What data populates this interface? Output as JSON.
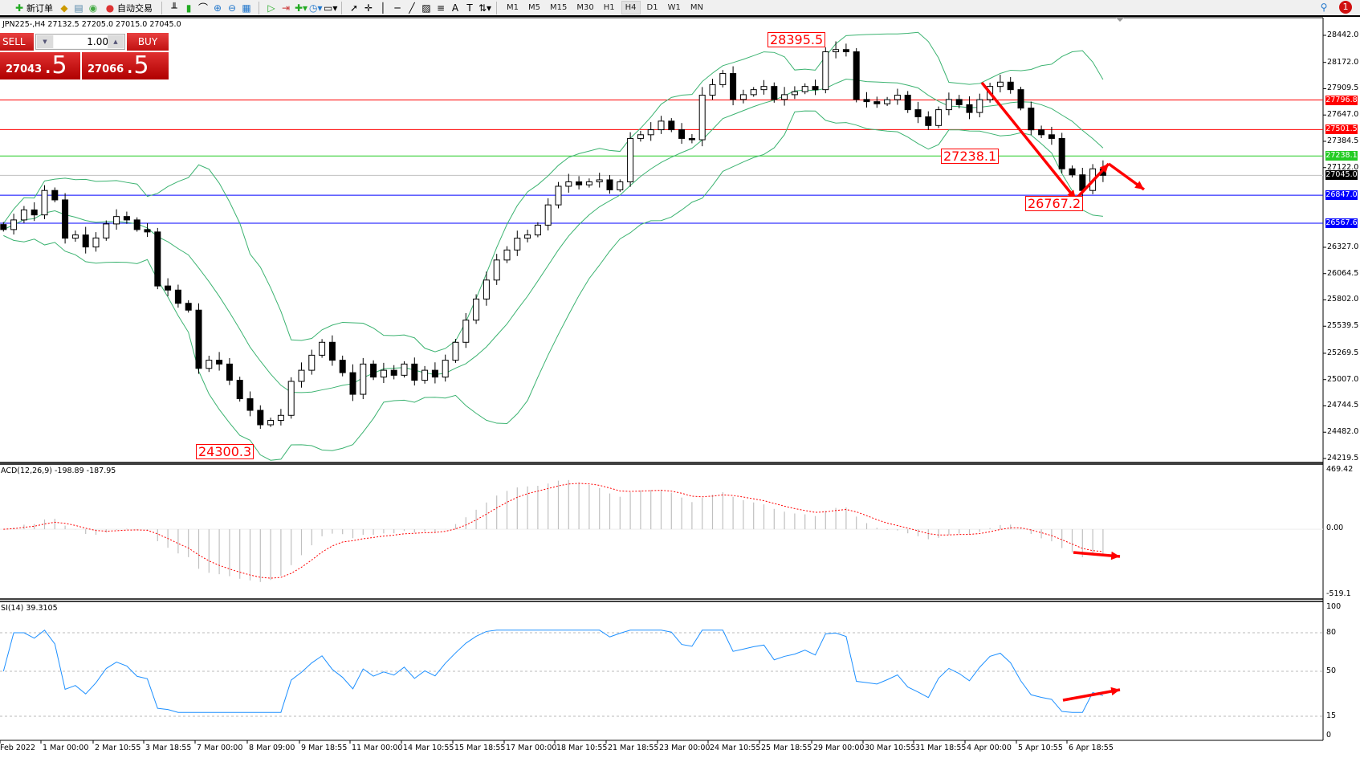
{
  "toolbar": {
    "new_order": "新订单",
    "auto_trading": "自动交易",
    "timeframes": [
      "M1",
      "M5",
      "M15",
      "M30",
      "H1",
      "H4",
      "D1",
      "W1",
      "MN"
    ],
    "active_timeframe": "H4",
    "notification_count": "1"
  },
  "chart": {
    "symbol_info": "JPN225-,H4  27132.5 27205.0 27015.0 27045.0"
  },
  "one_click": {
    "sell_label": "SELL",
    "buy_label": "BUY",
    "lot": "1.00",
    "sell_price_main": "27043",
    "sell_price_big": ".5",
    "buy_price_main": "27066",
    "buy_price_big": ".5"
  },
  "price_axis": {
    "ticks": [
      "28442.0",
      "28172.0",
      "27909.5",
      "27647.0",
      "27384.5",
      "27122.0",
      "26327.0",
      "26064.5",
      "25802.0",
      "25539.5",
      "25269.5",
      "25007.0",
      "24744.5",
      "24482.0",
      "24219.5"
    ]
  },
  "levels": [
    {
      "label": "27796.8",
      "value": 27796.8,
      "color": "#ff0000"
    },
    {
      "label": "27501.5",
      "value": 27501.5,
      "color": "#ff0000"
    },
    {
      "label": "27238.1",
      "value": 27238.1,
      "color": "#22cc22"
    },
    {
      "label": "27045.0",
      "value": 27045.0,
      "color": "#000000",
      "line": "#c0c0c0"
    },
    {
      "label": "26847.0",
      "value": 26847.0,
      "color": "#0000ff"
    },
    {
      "label": "26567.6",
      "value": 26567.6,
      "color": "#0000ff"
    }
  ],
  "annotations": {
    "high": "28395.5",
    "low": "24300.3",
    "level_mid": "27238.1",
    "recent_low": "26767.2"
  },
  "macd": {
    "title": "ACD(12,26,9) -198.89 -187.95",
    "axis": [
      "469.42",
      "0.00",
      "-519.1"
    ],
    "range": [
      -519.1,
      469.42
    ]
  },
  "rsi": {
    "title": "SI(14) 39.3105",
    "axis": [
      "100",
      "80",
      "50",
      "15",
      "0"
    ],
    "levels": [
      80,
      50,
      15
    ]
  },
  "time_axis": [
    "Feb 2022",
    "1 Mar 00:00",
    "2 Mar 10:55",
    "3 Mar 18:55",
    "7 Mar 00:00",
    "8 Mar 09:00",
    "9 Mar 18:55",
    "11 Mar 00:00",
    "14 Mar 10:55",
    "15 Mar 18:55",
    "17 Mar 00:00",
    "18 Mar 10:55",
    "21 Mar 18:55",
    "23 Mar 00:00",
    "24 Mar 10:55",
    "25 Mar 18:55",
    "29 Mar 00:00",
    "30 Mar 10:55",
    "31 Mar 18:55",
    "4 Apr 00:00",
    "5 Apr 10:55",
    "6 Apr 18:55"
  ],
  "colors": {
    "bands": "#3cb371",
    "macd_signal": "#ff0000",
    "macd_hist": "#c0c0c0",
    "rsi": "#1e90ff",
    "arrows": "#ff0000"
  },
  "chart_data": {
    "type": "candlestick",
    "price_range": [
      24219.5,
      28442.0
    ],
    "indicators": [
      "Bollinger Bands",
      "MACD",
      "RSI"
    ],
    "close": [
      26504,
      26600,
      26700,
      26650,
      26894,
      26800,
      26418,
      26450,
      26330,
      26420,
      26560,
      26634,
      26600,
      26504,
      26480,
      25941,
      25900,
      25768,
      25700,
      25119,
      25200,
      25162,
      25000,
      24816,
      24700,
      24556,
      24600,
      24650,
      24989,
      25100,
      25250,
      25379,
      25200,
      25076,
      24860,
      25162,
      25032,
      25100,
      25050,
      25162,
      25000,
      25100,
      25032,
      25200,
      25379,
      25600,
      25811,
      26000,
      26200,
      26300,
      26418,
      26450,
      26548,
      26750,
      26936,
      26980,
      26950,
      26980,
      27000,
      26900,
      26980,
      27413,
      27450,
      27500,
      27586,
      27500,
      27413,
      27400,
      27845,
      27950,
      28061,
      27802,
      27850,
      27900,
      27932,
      27802,
      27850,
      27880,
      27932,
      27900,
      28278,
      28300,
      28278,
      27802,
      27780,
      27759,
      27800,
      27845,
      27700,
      27629,
      27542,
      27700,
      27802,
      27750,
      27672,
      27800,
      27932,
      27975,
      27900,
      27716,
      27499,
      27450,
      27413,
      27110,
      27050,
      26894,
      27110,
      27045
    ]
  }
}
